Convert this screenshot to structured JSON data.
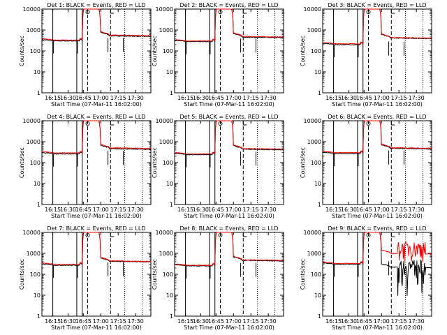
{
  "chart_data": [
    {
      "type": "line",
      "title": "Det 1: BLACK = Events, RED = LLD",
      "xlabel": "Start Time (07-Mar-11 16:02:00)",
      "ylabel": "Counts/sec",
      "xticks": [
        "16:15",
        "16:30",
        "16:45",
        "17:00",
        "17:15",
        "17:30"
      ],
      "yticks": [
        "1",
        "10",
        "100",
        "1000",
        "10000"
      ],
      "ylim": [
        1,
        10000
      ],
      "xlim": [
        0,
        100
      ],
      "series": [
        {
          "name": "Events",
          "color": "#000000",
          "variant": "quiet",
          "level": 300,
          "peak": 12000,
          "after": 480
        },
        {
          "name": "LLD",
          "color": "#ff0000",
          "variant": "quiet",
          "level": 330,
          "peak": 13000,
          "after": 520
        }
      ]
    },
    {
      "type": "line",
      "title": "Det 2: BLACK = Events, RED = LLD",
      "xlabel": "Start Time (07-Mar-11 16:02:00)",
      "ylabel": "Counts/sec",
      "xticks": [
        "16:15",
        "16:30",
        "16:45",
        "17:00",
        "17:15",
        "17:30"
      ],
      "yticks": [
        "1",
        "10",
        "100",
        "1000",
        "10000"
      ],
      "ylim": [
        1,
        10000
      ],
      "xlim": [
        0,
        100
      ],
      "series": [
        {
          "name": "Events",
          "color": "#000000",
          "variant": "quiet",
          "level": 280,
          "peak": 12000,
          "after": 420
        },
        {
          "name": "LLD",
          "color": "#ff0000",
          "variant": "quiet",
          "level": 300,
          "peak": 13000,
          "after": 450
        }
      ]
    },
    {
      "type": "line",
      "title": "Det 3: BLACK = Events, RED = LLD",
      "xlabel": "Start Time (07-Mar-11 16:02:00)",
      "ylabel": "Counts/sec",
      "xticks": [
        "16:15",
        "16:30",
        "16:45",
        "17:00",
        "17:15",
        "17:30"
      ],
      "yticks": [
        "1",
        "10",
        "100",
        "1000",
        "10000"
      ],
      "ylim": [
        1,
        10000
      ],
      "xlim": [
        0,
        100
      ],
      "series": [
        {
          "name": "Events",
          "color": "#000000",
          "variant": "quiet",
          "level": 200,
          "peak": 12000,
          "after": 380
        },
        {
          "name": "LLD",
          "color": "#ff0000",
          "variant": "quiet",
          "level": 220,
          "peak": 13000,
          "after": 400
        }
      ]
    },
    {
      "type": "line",
      "title": "Det 4: BLACK = Events, RED = LLD",
      "xlabel": "Start Time (07-Mar-11 16:02:00)",
      "ylabel": "Counts/sec",
      "xticks": [
        "16:15",
        "16:30",
        "16:45",
        "17:00",
        "17:15",
        "17:30"
      ],
      "yticks": [
        "1",
        "10",
        "100",
        "1000",
        "10000"
      ],
      "ylim": [
        1,
        10000
      ],
      "xlim": [
        0,
        100
      ],
      "series": [
        {
          "name": "Events",
          "color": "#000000",
          "variant": "quiet",
          "level": 260,
          "peak": 12000,
          "after": 420
        },
        {
          "name": "LLD",
          "color": "#ff0000",
          "variant": "quiet",
          "level": 290,
          "peak": 13000,
          "after": 460
        }
      ]
    },
    {
      "type": "line",
      "title": "Det 5: BLACK = Events, RED = LLD",
      "xlabel": "Start Time (07-Mar-11 16:02:00)",
      "ylabel": "Counts/sec",
      "xticks": [
        "16:15",
        "16:30",
        "16:45",
        "17:00",
        "17:15",
        "17:30"
      ],
      "yticks": [
        "1",
        "10",
        "100",
        "1000",
        "10000"
      ],
      "ylim": [
        1,
        10000
      ],
      "xlim": [
        0,
        100
      ],
      "series": [
        {
          "name": "Events",
          "color": "#000000",
          "variant": "quiet",
          "level": 240,
          "peak": 12000,
          "after": 400
        },
        {
          "name": "LLD",
          "color": "#ff0000",
          "variant": "quiet",
          "level": 260,
          "peak": 13000,
          "after": 430
        }
      ]
    },
    {
      "type": "line",
      "title": "Det 6: BLACK = Events, RED = LLD",
      "xlabel": "Start Time (07-Mar-11 16:02:00)",
      "ylabel": "Counts/sec",
      "xticks": [
        "16:15",
        "16:30",
        "16:45",
        "17:00",
        "17:15",
        "17:30"
      ],
      "yticks": [
        "1",
        "10",
        "100",
        "1000",
        "10000"
      ],
      "ylim": [
        1,
        10000
      ],
      "xlim": [
        0,
        100
      ],
      "series": [
        {
          "name": "Events",
          "color": "#000000",
          "variant": "quiet",
          "level": 270,
          "peak": 12000,
          "after": 440
        },
        {
          "name": "LLD",
          "color": "#ff0000",
          "variant": "quiet",
          "level": 300,
          "peak": 13000,
          "after": 470
        }
      ]
    },
    {
      "type": "line",
      "title": "Det 7: BLACK = Events, RED = LLD",
      "xlabel": "Start Time (07-Mar-11 16:02:00)",
      "ylabel": "Counts/sec",
      "xticks": [
        "16:15",
        "16:30",
        "16:45",
        "17:00",
        "17:15",
        "17:30"
      ],
      "yticks": [
        "1",
        "10",
        "100",
        "1000",
        "10000"
      ],
      "ylim": [
        1,
        10000
      ],
      "xlim": [
        0,
        100
      ],
      "series": [
        {
          "name": "Events",
          "color": "#000000",
          "variant": "quiet",
          "level": 270,
          "peak": 12000,
          "after": 380
        },
        {
          "name": "LLD",
          "color": "#ff0000",
          "variant": "quiet",
          "level": 300,
          "peak": 13000,
          "after": 400
        }
      ]
    },
    {
      "type": "line",
      "title": "Det 8: BLACK = Events, RED = LLD",
      "xlabel": "Start Time (07-Mar-11 16:02:00)",
      "ylabel": "Counts/sec",
      "xticks": [
        "16:15",
        "16:30",
        "16:45",
        "17:00",
        "17:15",
        "17:30"
      ],
      "yticks": [
        "1",
        "10",
        "100",
        "1000",
        "10000"
      ],
      "ylim": [
        1,
        10000
      ],
      "xlim": [
        0,
        100
      ],
      "series": [
        {
          "name": "Events",
          "color": "#000000",
          "variant": "quiet",
          "level": 250,
          "peak": 12000,
          "after": 420
        },
        {
          "name": "LLD",
          "color": "#ff0000",
          "variant": "quiet",
          "level": 270,
          "peak": 13000,
          "after": 450
        }
      ]
    },
    {
      "type": "line",
      "title": "Det 9: BLACK = Events, RED = LLD",
      "xlabel": "Start Time (07-Mar-11 16:02:00)",
      "ylabel": "Counts/sec",
      "xticks": [
        "16:15",
        "16:30",
        "16:45",
        "17:00",
        "17:15",
        "17:30"
      ],
      "yticks": [
        "1",
        "10",
        "100",
        "1000",
        "10000"
      ],
      "ylim": [
        1,
        10000
      ],
      "xlim": [
        0,
        100
      ],
      "series": [
        {
          "name": "Events",
          "color": "#000000",
          "variant": "noisy",
          "level": 300,
          "peak": 12000,
          "after": 200
        },
        {
          "name": "LLD",
          "color": "#ff0000",
          "variant": "noisy",
          "level": 330,
          "peak": 13000,
          "after": 900
        }
      ]
    }
  ]
}
